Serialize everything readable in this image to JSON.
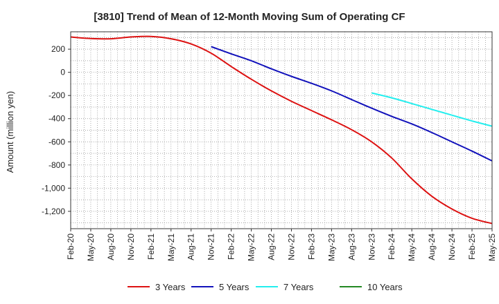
{
  "chart_data": {
    "type": "line",
    "title": "[3810]  Trend of Mean of 12-Month Moving Sum of Operating CF",
    "ylabel": "Amount (million yen)",
    "xlabel": "",
    "ylim": [
      -1350,
      350
    ],
    "yticks": [
      200,
      0,
      -200,
      -400,
      -600,
      -800,
      -1000,
      -1200
    ],
    "ytick_labels": [
      "200",
      "0",
      "-200",
      "-400",
      "-600",
      "-800",
      "-1,000",
      "-1,200"
    ],
    "x_start": "Feb-20",
    "x_end": "May-25",
    "num_months": 64,
    "xtick_labels": [
      "Feb-20",
      "May-20",
      "Aug-20",
      "Nov-20",
      "Feb-21",
      "May-21",
      "Aug-21",
      "Nov-21",
      "Feb-22",
      "May-22",
      "Aug-22",
      "Nov-22",
      "Feb-23",
      "May-23",
      "Aug-23",
      "Nov-23",
      "Feb-24",
      "May-24",
      "Aug-24",
      "Nov-24",
      "Feb-25",
      "May-25"
    ],
    "grid": true,
    "legend_position": "bottom",
    "series": [
      {
        "name": "3 Years",
        "color": "#dd1111",
        "points": [
          [
            0,
            305
          ],
          [
            3,
            292
          ],
          [
            6,
            290
          ],
          [
            9,
            305
          ],
          [
            12,
            310
          ],
          [
            15,
            290
          ],
          [
            18,
            245
          ],
          [
            21,
            165
          ],
          [
            24,
            50
          ],
          [
            27,
            -60
          ],
          [
            30,
            -160
          ],
          [
            33,
            -250
          ],
          [
            36,
            -330
          ],
          [
            39,
            -410
          ],
          [
            42,
            -495
          ],
          [
            45,
            -600
          ],
          [
            48,
            -740
          ],
          [
            51,
            -920
          ],
          [
            54,
            -1070
          ],
          [
            57,
            -1180
          ],
          [
            60,
            -1260
          ],
          [
            63,
            -1305
          ]
        ]
      },
      {
        "name": "5 Years",
        "color": "#1111bb",
        "points": [
          [
            21,
            222
          ],
          [
            24,
            160
          ],
          [
            27,
            100
          ],
          [
            30,
            30
          ],
          [
            33,
            -35
          ],
          [
            36,
            -95
          ],
          [
            39,
            -160
          ],
          [
            42,
            -235
          ],
          [
            45,
            -310
          ],
          [
            48,
            -380
          ],
          [
            51,
            -445
          ],
          [
            54,
            -520
          ],
          [
            57,
            -600
          ],
          [
            60,
            -680
          ],
          [
            63,
            -765
          ]
        ]
      },
      {
        "name": "7 Years",
        "color": "#22eeee",
        "points": [
          [
            45,
            -178
          ],
          [
            48,
            -220
          ],
          [
            51,
            -270
          ],
          [
            54,
            -320
          ],
          [
            57,
            -370
          ],
          [
            60,
            -420
          ],
          [
            63,
            -465
          ]
        ]
      },
      {
        "name": "10 Years",
        "color": "#228822",
        "points": []
      }
    ]
  }
}
